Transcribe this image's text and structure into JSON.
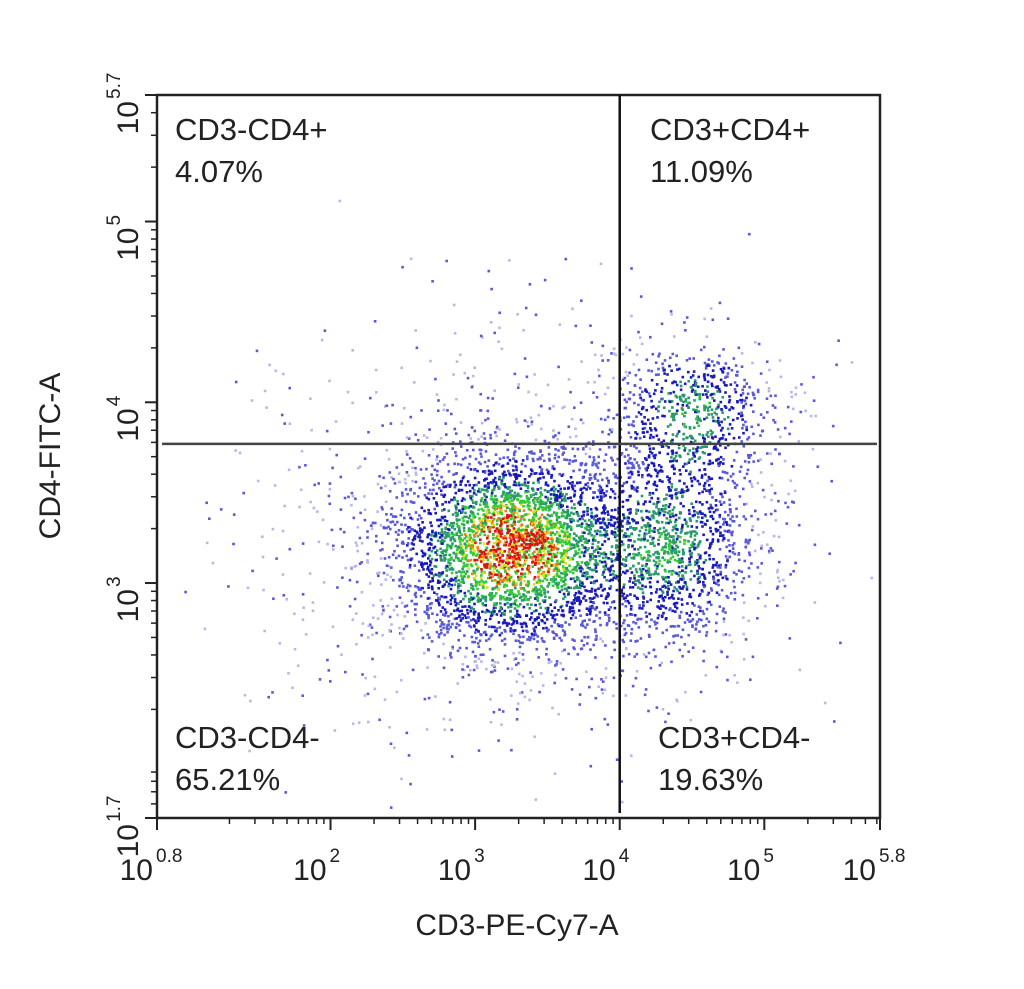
{
  "chart_data": {
    "type": "scatter",
    "xlabel": "CD3-PE-Cy7-A",
    "ylabel": "CD4-FITC-A",
    "x_scale": "log10",
    "y_scale": "log10",
    "xlim_log10": [
      0.8,
      5.8
    ],
    "ylim_log10": [
      1.7,
      5.7
    ],
    "x_ticks": [
      {
        "base": "10",
        "exp": "0.8",
        "log": 0.8
      },
      {
        "base": "10",
        "exp": "2",
        "log": 2
      },
      {
        "base": "10",
        "exp": "3",
        "log": 3
      },
      {
        "base": "10",
        "exp": "4",
        "log": 4
      },
      {
        "base": "10",
        "exp": "5",
        "log": 5
      },
      {
        "base": "10",
        "exp": "5.8",
        "log": 5.8
      }
    ],
    "y_ticks": [
      {
        "base": "10",
        "exp": "1.7",
        "log": 1.7
      },
      {
        "base": "10",
        "exp": "3",
        "log": 3
      },
      {
        "base": "10",
        "exp": "4",
        "log": 4
      },
      {
        "base": "10",
        "exp": "5",
        "log": 5
      },
      {
        "base": "10",
        "exp": "5.7",
        "log": 5.7
      }
    ],
    "gates": {
      "x_threshold_log10": 4.0,
      "y_threshold_log10": 3.77
    },
    "quadrants": [
      {
        "label": "CD3-CD4+",
        "percent": "4.07%",
        "position": "top-left"
      },
      {
        "label": "CD3+CD4+",
        "percent": "11.09%",
        "position": "top-right"
      },
      {
        "label": "CD3-CD4-",
        "percent": "65.21%",
        "position": "bottom-left"
      },
      {
        "label": "CD3+CD4-",
        "percent": "19.63%",
        "position": "bottom-right"
      }
    ],
    "populations": [
      {
        "x_log10": 3.25,
        "y_log10": 3.2,
        "spread_x": 0.42,
        "spread_y": 0.28,
        "count": 3200
      },
      {
        "x_log10": 4.35,
        "y_log10": 3.2,
        "spread_x": 0.3,
        "spread_y": 0.3,
        "count": 1100
      },
      {
        "x_log10": 4.5,
        "y_log10": 3.95,
        "spread_x": 0.3,
        "spread_y": 0.22,
        "count": 600
      },
      {
        "x_log10": 3.3,
        "y_log10": 3.3,
        "spread_x": 1.0,
        "spread_y": 0.6,
        "count": 900
      }
    ],
    "density_colors": [
      "#b8b8e8",
      "#5a5ad8",
      "#1a1ab8",
      "#2a9a6a",
      "#33cc33",
      "#dddd22",
      "#ff7711",
      "#dd1111"
    ],
    "grid": false,
    "legend": "none"
  }
}
